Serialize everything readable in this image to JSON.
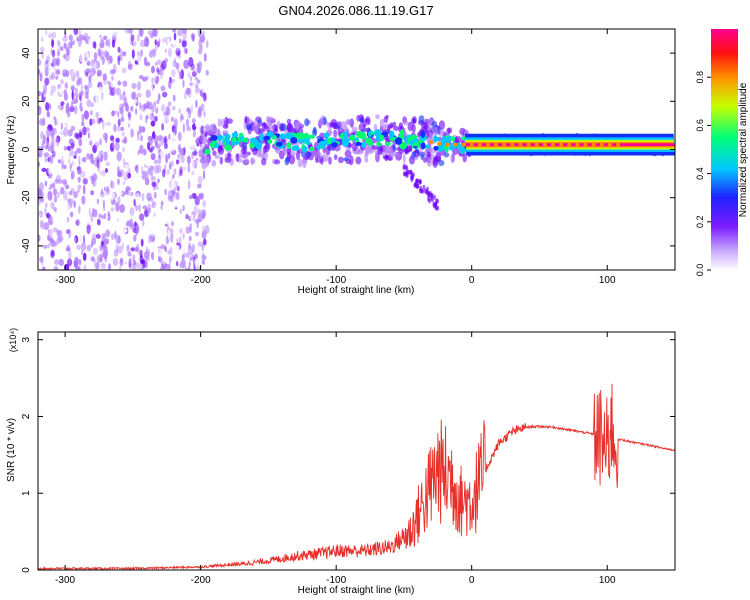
{
  "title": "GN04.2026.086.11.19.G17",
  "chart_data": [
    {
      "type": "heatmap",
      "xlabel": "Height of straight line (km)",
      "ylabel": "Frequency (Hz)",
      "xlim": [
        -320,
        150
      ],
      "ylim": [
        -50,
        50
      ],
      "xticks": [
        -300,
        -200,
        -100,
        0,
        100
      ],
      "yticks": [
        -40,
        -20,
        0,
        20,
        40
      ],
      "colorbar": {
        "label": "Normalized spectral amplitude",
        "range": [
          0,
          1
        ],
        "ticks": [
          0.0,
          0.2,
          0.4,
          0.6,
          0.8
        ],
        "colors": [
          "#ffffff",
          "#b07cff",
          "#6a00ff",
          "#1030ff",
          "#00c8ff",
          "#00ff70",
          "#c8ff00",
          "#ff9000",
          "#ff0000",
          "#ff0090"
        ]
      },
      "ridge": [
        {
          "x": -190,
          "y": 3
        },
        {
          "x": -150,
          "y": 4
        },
        {
          "x": -120,
          "y": 3
        },
        {
          "x": -90,
          "y": 4
        },
        {
          "x": -60,
          "y": 5
        },
        {
          "x": -40,
          "y": 4
        },
        {
          "x": -20,
          "y": 2
        },
        {
          "x": 0,
          "y": 2
        },
        {
          "x": 50,
          "y": 2
        },
        {
          "x": 100,
          "y": 2
        },
        {
          "x": 150,
          "y": 2
        }
      ],
      "noise_region": {
        "x": [
          -320,
          -195
        ],
        "y": [
          -50,
          50
        ]
      },
      "grid": false
    },
    {
      "type": "line",
      "xlabel": "Height of straight line (km)",
      "ylabel": "SNR (10 * v/v)",
      "y_multiplier": "(x10⁴)",
      "xlim": [
        -320,
        150
      ],
      "ylim": [
        0,
        3.1
      ],
      "xticks": [
        -300,
        -200,
        -100,
        0,
        100
      ],
      "yticks": [
        0,
        1,
        2,
        3
      ],
      "series": [
        {
          "color": "#e8302a",
          "x": [
            -320,
            -250,
            -200,
            -170,
            -150,
            -130,
            -110,
            -100,
            -80,
            -60,
            -45,
            -35,
            -25,
            -15,
            -8,
            0,
            10,
            20,
            30,
            40,
            50,
            60,
            70,
            80,
            90,
            95,
            100,
            103,
            106,
            110,
            120,
            130,
            140,
            150
          ],
          "y": [
            0.02,
            0.02,
            0.04,
            0.08,
            0.12,
            0.18,
            0.22,
            0.25,
            0.25,
            0.3,
            0.5,
            0.9,
            1.3,
            1.2,
            0.9,
            0.9,
            1.3,
            1.65,
            1.8,
            1.86,
            1.87,
            1.86,
            1.83,
            1.8,
            1.77,
            1.7,
            1.55,
            1.9,
            1.68,
            1.7,
            1.66,
            1.63,
            1.59,
            1.56
          ]
        }
      ],
      "grid": false
    }
  ]
}
